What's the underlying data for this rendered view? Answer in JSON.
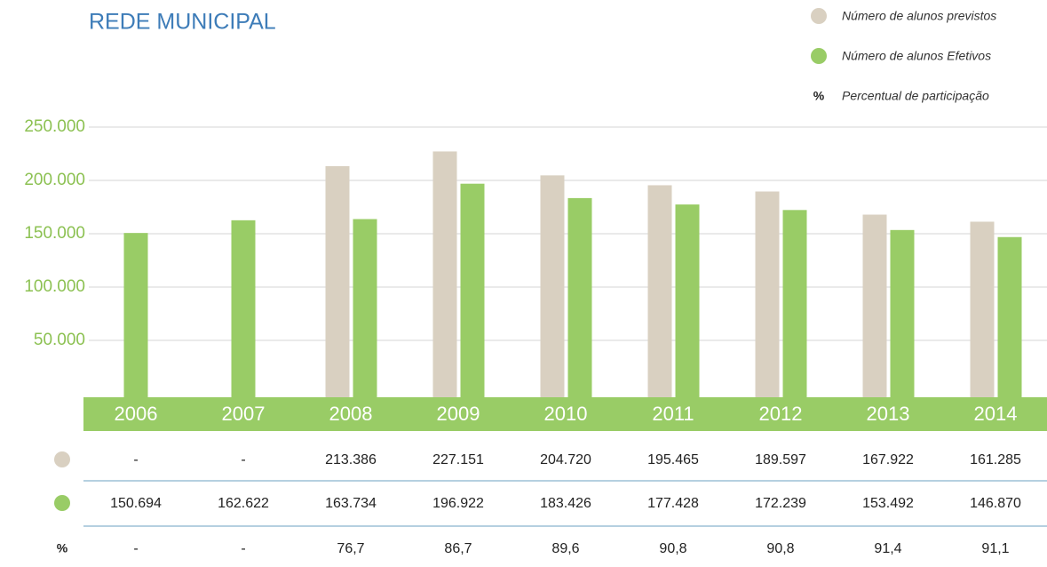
{
  "chart_data": {
    "type": "bar",
    "title": "REDE MUNICIPAL",
    "categories": [
      "2006",
      "2007",
      "2008",
      "2009",
      "2010",
      "2011",
      "2012",
      "2013",
      "2014"
    ],
    "series": [
      {
        "name": "Número de alunos previstos",
        "color": "#d9d0c1",
        "values": [
          null,
          null,
          213386,
          227151,
          204720,
          195465,
          189597,
          167922,
          161285
        ],
        "value_labels": [
          "-",
          "-",
          "213.386",
          "227.151",
          "204.720",
          "195.465",
          "189.597",
          "167.922",
          "161.285"
        ]
      },
      {
        "name": "Número de alunos Efetivos",
        "color": "#99cc66",
        "values": [
          150694,
          162622,
          163734,
          196922,
          183426,
          177428,
          172239,
          153492,
          146870
        ],
        "value_labels": [
          "150.694",
          "162.622",
          "163.734",
          "196.922",
          "183.426",
          "177.428",
          "172.239",
          "153.492",
          "146.870"
        ]
      }
    ],
    "participation": {
      "name": "Percentual de participação",
      "symbol": "%",
      "values": [
        null,
        null,
        76.7,
        86.7,
        89.6,
        90.8,
        90.8,
        91.4,
        91.1
      ],
      "value_labels": [
        "-",
        "-",
        "76,7",
        "86,7",
        "89,6",
        "90,8",
        "90,8",
        "91,4",
        "91,1"
      ]
    },
    "ylim": [
      0,
      250000
    ],
    "yticks": [
      {
        "value": 50000,
        "label": "50.000"
      },
      {
        "value": 100000,
        "label": "100.000"
      },
      {
        "value": 150000,
        "label": "150.000"
      },
      {
        "value": 200000,
        "label": "200.000"
      },
      {
        "value": 250000,
        "label": "250.000"
      }
    ],
    "grid": true
  }
}
